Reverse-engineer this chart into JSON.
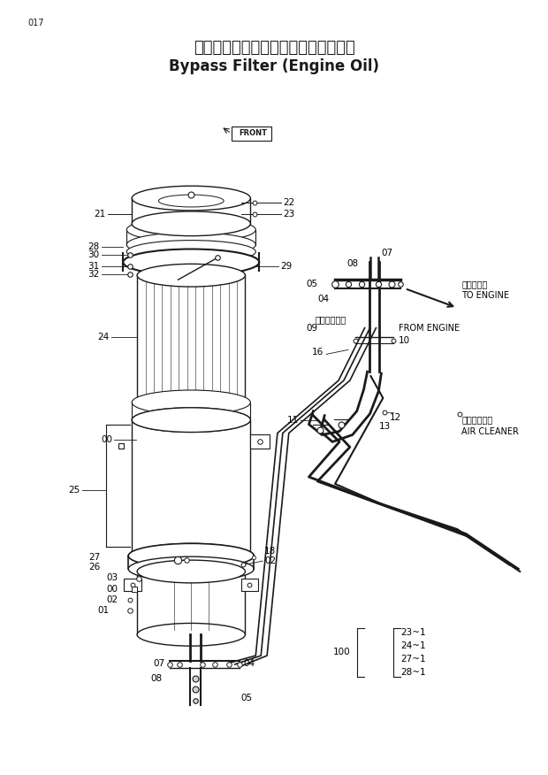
{
  "title_jp": "バイパスフィルタ（エンジンオイル）",
  "title_en": "Bypass Filter (Engine Oil)",
  "page_num": "017",
  "bg_color": "#ffffff",
  "line_color": "#1a1a1a",
  "text_color": "#1a1a1a",
  "figsize": [
    6.2,
    8.76
  ],
  "dpi": 100
}
